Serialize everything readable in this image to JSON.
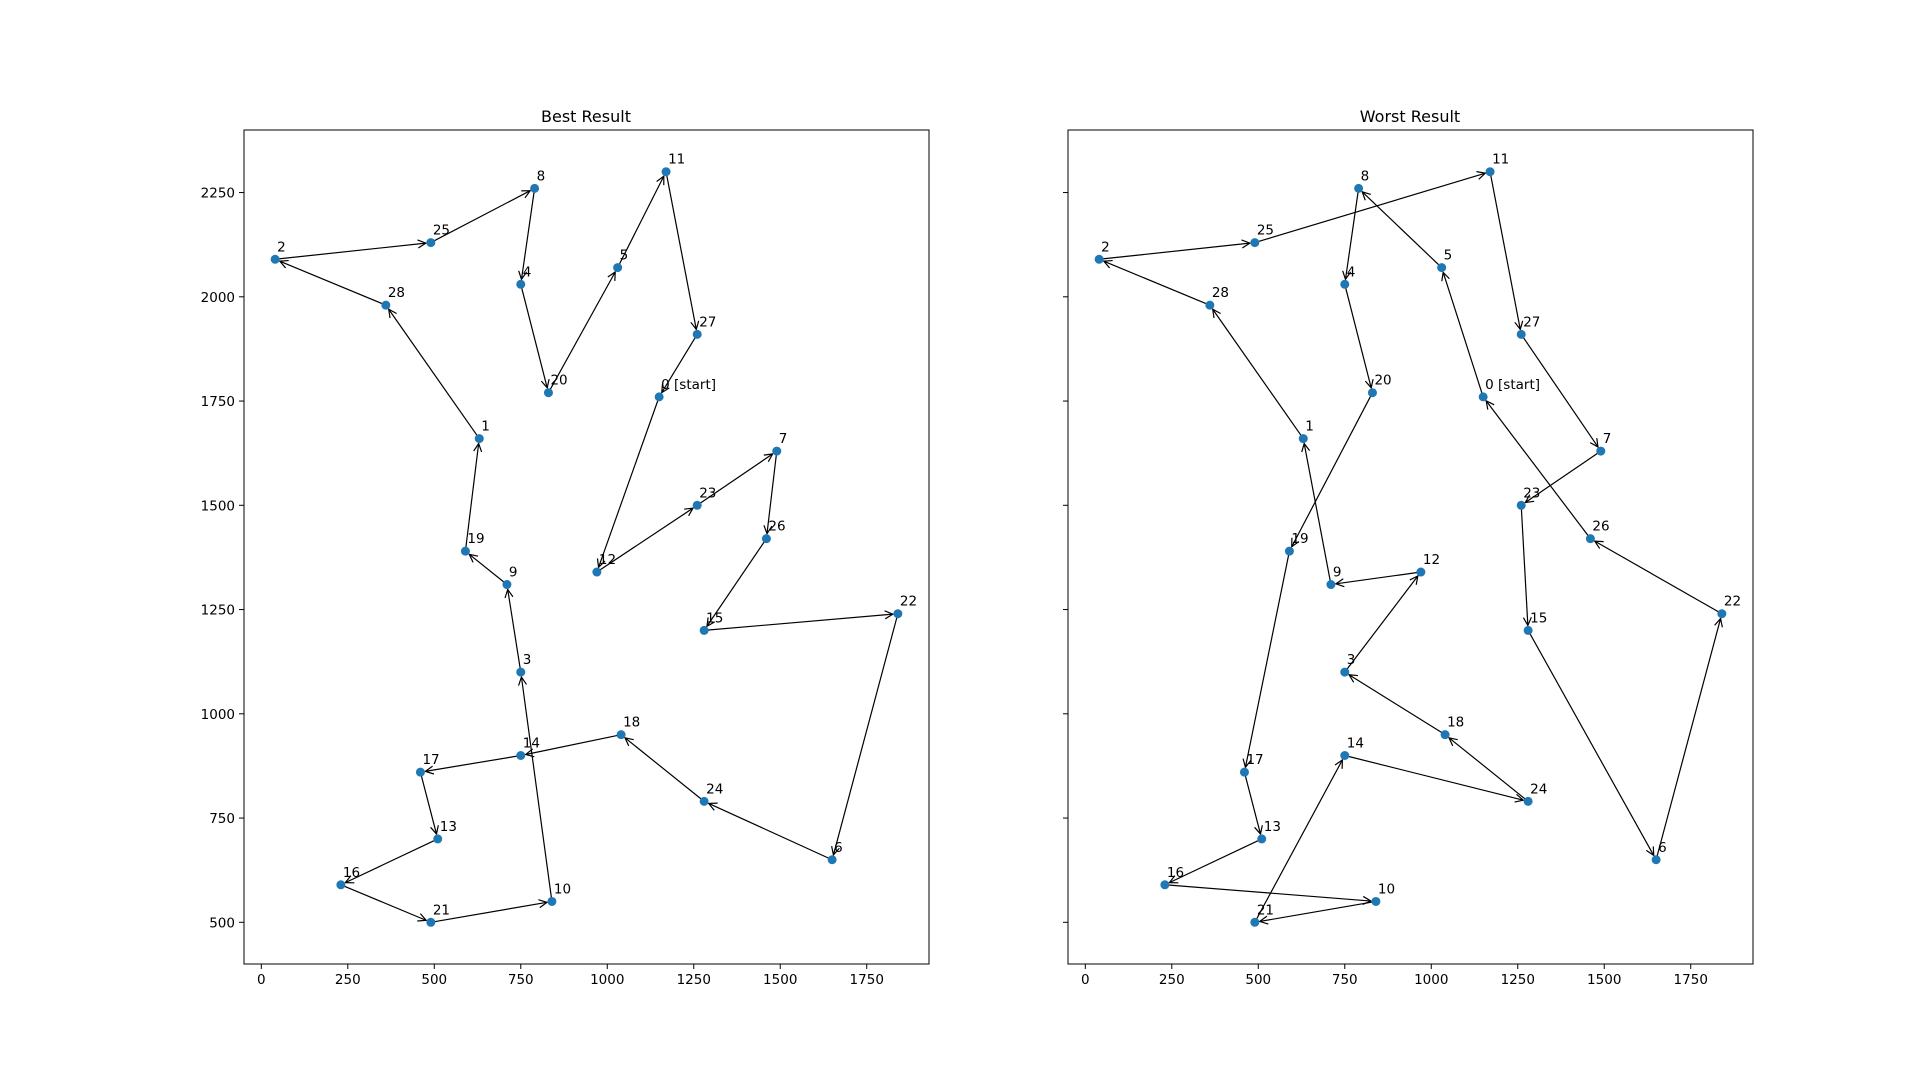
{
  "chart_data": [
    {
      "type": "scatter",
      "title": "Best Result",
      "xlabel": "",
      "ylabel": "",
      "xlim": [
        -50,
        1930
      ],
      "ylim": [
        400,
        2400
      ],
      "xticks": [
        0,
        250,
        500,
        750,
        1000,
        1250,
        1500,
        1750
      ],
      "yticks": [
        500,
        750,
        1000,
        1250,
        1500,
        1750,
        2000,
        2250
      ],
      "show_y_tick_labels": true,
      "grid": false,
      "point_color": "#1f77b4",
      "points": [
        {
          "id": 0,
          "label": "0 [start]",
          "x": 1150,
          "y": 1760
        },
        {
          "id": 1,
          "label": "1",
          "x": 630,
          "y": 1660
        },
        {
          "id": 2,
          "label": "2",
          "x": 40,
          "y": 2090
        },
        {
          "id": 3,
          "label": "3",
          "x": 750,
          "y": 1100
        },
        {
          "id": 4,
          "label": "4",
          "x": 750,
          "y": 2030
        },
        {
          "id": 5,
          "label": "5",
          "x": 1030,
          "y": 2070
        },
        {
          "id": 6,
          "label": "6",
          "x": 1650,
          "y": 650
        },
        {
          "id": 7,
          "label": "7",
          "x": 1490,
          "y": 1630
        },
        {
          "id": 8,
          "label": "8",
          "x": 790,
          "y": 2260
        },
        {
          "id": 9,
          "label": "9",
          "x": 710,
          "y": 1310
        },
        {
          "id": 10,
          "label": "10",
          "x": 840,
          "y": 550
        },
        {
          "id": 11,
          "label": "11",
          "x": 1170,
          "y": 2300
        },
        {
          "id": 12,
          "label": "12",
          "x": 970,
          "y": 1340
        },
        {
          "id": 13,
          "label": "13",
          "x": 510,
          "y": 700
        },
        {
          "id": 14,
          "label": "14",
          "x": 750,
          "y": 900
        },
        {
          "id": 15,
          "label": "15",
          "x": 1280,
          "y": 1200
        },
        {
          "id": 16,
          "label": "16",
          "x": 230,
          "y": 590
        },
        {
          "id": 17,
          "label": "17",
          "x": 460,
          "y": 860
        },
        {
          "id": 18,
          "label": "18",
          "x": 1040,
          "y": 950
        },
        {
          "id": 19,
          "label": "19",
          "x": 590,
          "y": 1390
        },
        {
          "id": 20,
          "label": "20",
          "x": 830,
          "y": 1770
        },
        {
          "id": 21,
          "label": "21",
          "x": 490,
          "y": 500
        },
        {
          "id": 22,
          "label": "22",
          "x": 1840,
          "y": 1240
        },
        {
          "id": 23,
          "label": "23",
          "x": 1260,
          "y": 1500
        },
        {
          "id": 24,
          "label": "24",
          "x": 1280,
          "y": 790
        },
        {
          "id": 25,
          "label": "25",
          "x": 490,
          "y": 2130
        },
        {
          "id": 26,
          "label": "26",
          "x": 1460,
          "y": 1420
        },
        {
          "id": 27,
          "label": "27",
          "x": 1260,
          "y": 1910
        },
        {
          "id": 28,
          "label": "28",
          "x": 360,
          "y": 1980
        }
      ],
      "route": [
        0,
        12,
        23,
        7,
        26,
        15,
        22,
        6,
        24,
        18,
        14,
        17,
        13,
        16,
        21,
        10,
        3,
        9,
        19,
        1,
        28,
        2,
        25,
        8,
        4,
        20,
        5,
        11,
        27,
        0
      ]
    },
    {
      "type": "scatter",
      "title": "Worst Result",
      "xlabel": "",
      "ylabel": "",
      "xlim": [
        -50,
        1930
      ],
      "ylim": [
        400,
        2400
      ],
      "xticks": [
        0,
        250,
        500,
        750,
        1000,
        1250,
        1500,
        1750
      ],
      "yticks": [
        500,
        750,
        1000,
        1250,
        1500,
        1750,
        2000,
        2250
      ],
      "show_y_tick_labels": false,
      "grid": false,
      "point_color": "#1f77b4",
      "points": [
        {
          "id": 0,
          "label": "0 [start]",
          "x": 1150,
          "y": 1760
        },
        {
          "id": 1,
          "label": "1",
          "x": 630,
          "y": 1660
        },
        {
          "id": 2,
          "label": "2",
          "x": 40,
          "y": 2090
        },
        {
          "id": 3,
          "label": "3",
          "x": 750,
          "y": 1100
        },
        {
          "id": 4,
          "label": "4",
          "x": 750,
          "y": 2030
        },
        {
          "id": 5,
          "label": "5",
          "x": 1030,
          "y": 2070
        },
        {
          "id": 6,
          "label": "6",
          "x": 1650,
          "y": 650
        },
        {
          "id": 7,
          "label": "7",
          "x": 1490,
          "y": 1630
        },
        {
          "id": 8,
          "label": "8",
          "x": 790,
          "y": 2260
        },
        {
          "id": 9,
          "label": "9",
          "x": 710,
          "y": 1310
        },
        {
          "id": 10,
          "label": "10",
          "x": 840,
          "y": 550
        },
        {
          "id": 11,
          "label": "11",
          "x": 1170,
          "y": 2300
        },
        {
          "id": 12,
          "label": "12",
          "x": 970,
          "y": 1340
        },
        {
          "id": 13,
          "label": "13",
          "x": 510,
          "y": 700
        },
        {
          "id": 14,
          "label": "14",
          "x": 750,
          "y": 900
        },
        {
          "id": 15,
          "label": "15",
          "x": 1280,
          "y": 1200
        },
        {
          "id": 16,
          "label": "16",
          "x": 230,
          "y": 590
        },
        {
          "id": 17,
          "label": "17",
          "x": 460,
          "y": 860
        },
        {
          "id": 18,
          "label": "18",
          "x": 1040,
          "y": 950
        },
        {
          "id": 19,
          "label": "19",
          "x": 590,
          "y": 1390
        },
        {
          "id": 20,
          "label": "20",
          "x": 830,
          "y": 1770
        },
        {
          "id": 21,
          "label": "21",
          "x": 490,
          "y": 500
        },
        {
          "id": 22,
          "label": "22",
          "x": 1840,
          "y": 1240
        },
        {
          "id": 23,
          "label": "23",
          "x": 1260,
          "y": 1500
        },
        {
          "id": 24,
          "label": "24",
          "x": 1280,
          "y": 790
        },
        {
          "id": 25,
          "label": "25",
          "x": 490,
          "y": 2130
        },
        {
          "id": 26,
          "label": "26",
          "x": 1460,
          "y": 1420
        },
        {
          "id": 27,
          "label": "27",
          "x": 1260,
          "y": 1910
        },
        {
          "id": 28,
          "label": "28",
          "x": 360,
          "y": 1980
        }
      ],
      "route": [
        0,
        5,
        8,
        4,
        20,
        19,
        17,
        13,
        16,
        10,
        21,
        14,
        24,
        18,
        3,
        12,
        9,
        1,
        28,
        2,
        25,
        11,
        27,
        7,
        23,
        15,
        6,
        22,
        26,
        0
      ]
    }
  ]
}
